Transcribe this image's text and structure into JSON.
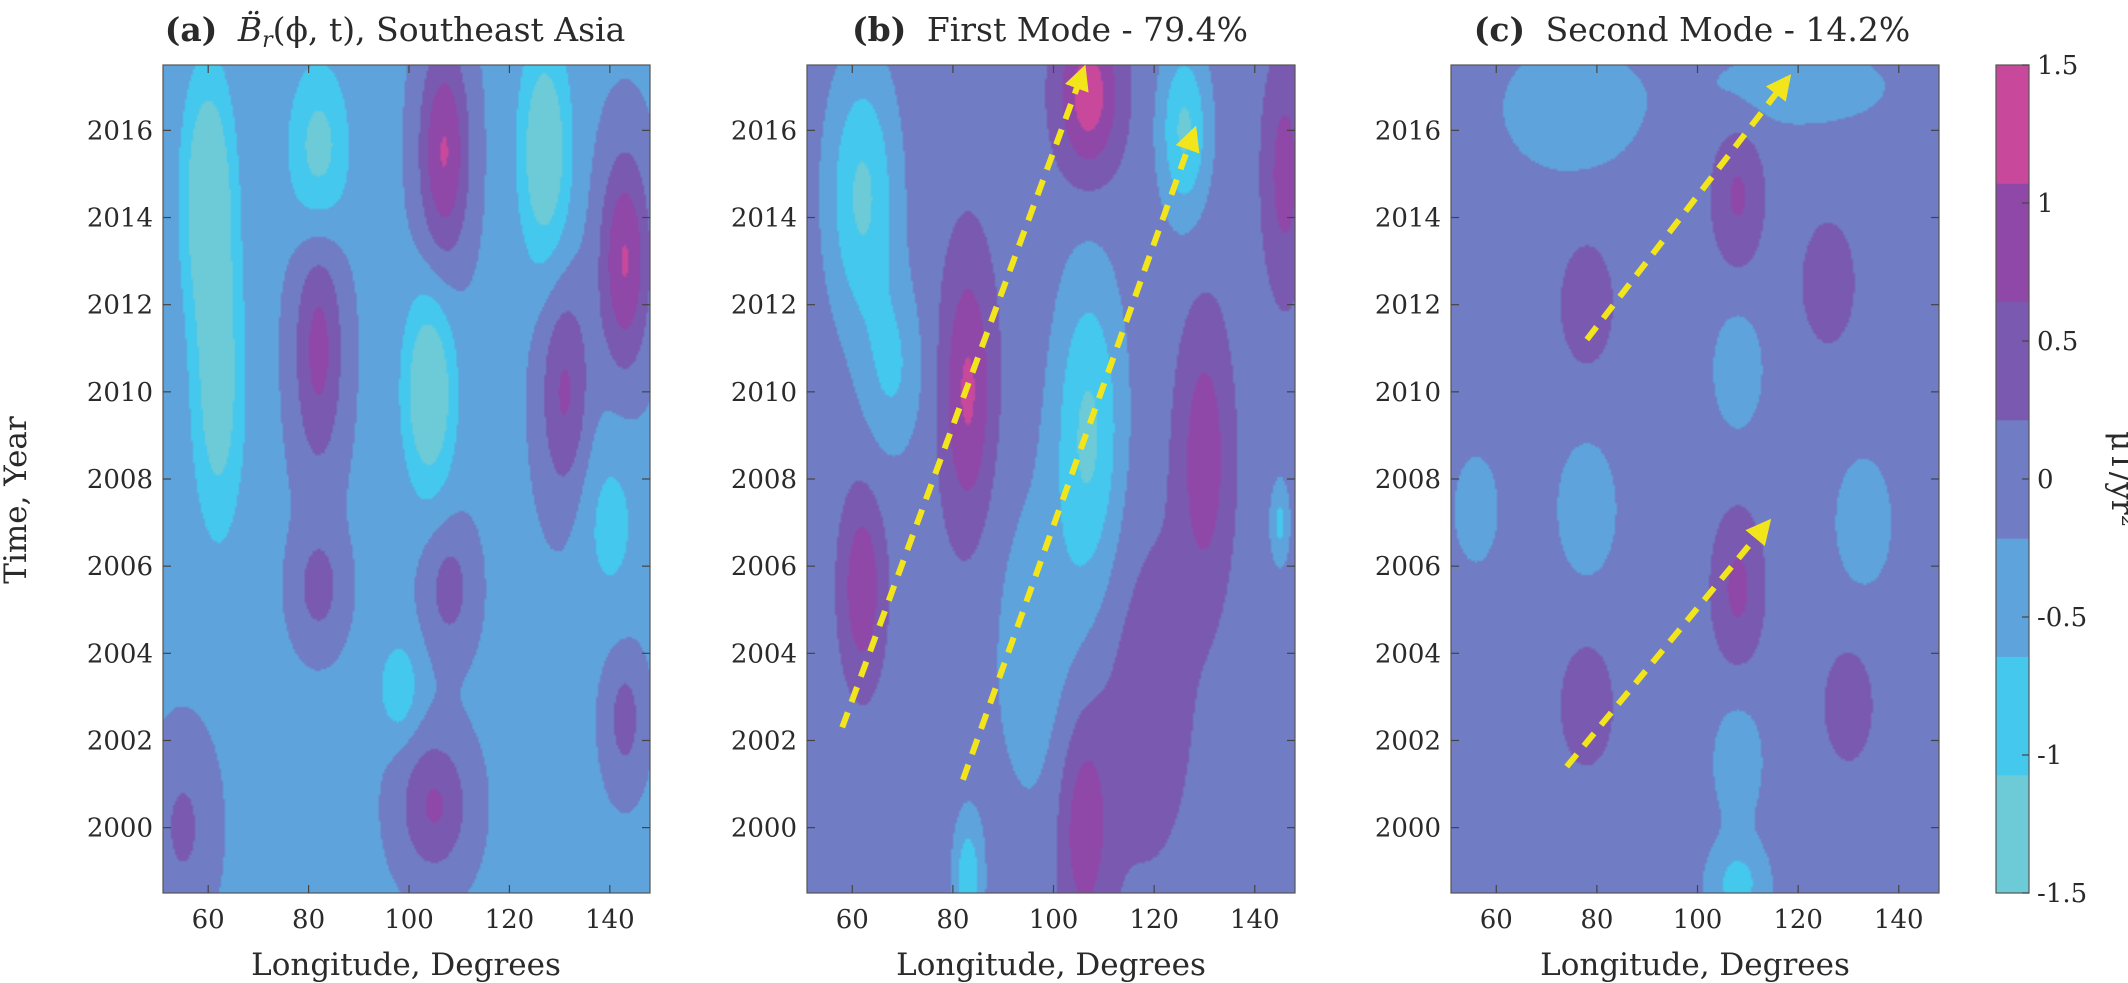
{
  "chart_data": {
    "type": "heatmap",
    "shared": {
      "xlabel": "Longitude, Degrees",
      "ylabel": "Time, Year",
      "xlim": [
        51,
        148
      ],
      "ylim": [
        1998.5,
        2017.5
      ],
      "xticks": [
        "60",
        "80",
        "100",
        "120",
        "140"
      ],
      "yticks": [
        "2000",
        "2002",
        "2004",
        "2006",
        "2008",
        "2010",
        "2012",
        "2014",
        "2016"
      ],
      "colorbar": {
        "label": "μT/yr²",
        "range": [
          -1.5,
          1.5
        ],
        "ticks": [
          "1.5",
          "1",
          "0.5",
          "0",
          "-0.5",
          "-1",
          "-1.5"
        ],
        "colors": [
          "#6ccbd6",
          "#45c8ee",
          "#5ea3dc",
          "#707cc4",
          "#7a5ab0",
          "#9048a8",
          "#c8489c"
        ]
      }
    },
    "panels": [
      {
        "title": "(a) B̈r(ϕ,t), Southeast Asia",
        "title_bold": "(a)",
        "title_rest": "B̈",
        "title_sub": "r",
        "title_tail": "(ϕ, t), Southeast Asia",
        "base_level": -0.3,
        "blobs": [
          {
            "x": 60,
            "y": 2014.5,
            "sx": 5,
            "sy": 2.8,
            "v": -1.4
          },
          {
            "x": 62,
            "y": 2010,
            "sx": 5,
            "sy": 3.2,
            "v": -1.1
          },
          {
            "x": 82,
            "y": 2015.5,
            "sx": 6,
            "sy": 2,
            "v": -1.0
          },
          {
            "x": 82,
            "y": 2011,
            "sx": 5,
            "sy": 2.8,
            "v": 1.1
          },
          {
            "x": 107,
            "y": 2015.5,
            "sx": 5,
            "sy": 2.5,
            "v": 1.4
          },
          {
            "x": 104,
            "y": 2010,
            "sx": 5,
            "sy": 2.2,
            "v": -1.4
          },
          {
            "x": 127,
            "y": 2015.5,
            "sx": 5,
            "sy": 2.5,
            "v": -1.3
          },
          {
            "x": 131,
            "y": 2010,
            "sx": 5,
            "sy": 2.5,
            "v": 1.0
          },
          {
            "x": 143,
            "y": 2013,
            "sx": 5,
            "sy": 2.5,
            "v": 1.4
          },
          {
            "x": 82,
            "y": 2005.5,
            "sx": 5,
            "sy": 1.3,
            "v": 0.7
          },
          {
            "x": 108,
            "y": 2005.5,
            "sx": 5,
            "sy": 1.5,
            "v": 0.7
          },
          {
            "x": 98,
            "y": 2003.2,
            "sx": 4,
            "sy": 1.1,
            "v": -0.7
          },
          {
            "x": 143,
            "y": 2002.5,
            "sx": 4,
            "sy": 1.5,
            "v": 0.7
          },
          {
            "x": 105,
            "y": 2000.5,
            "sx": 7,
            "sy": 1.6,
            "v": 1.0
          },
          {
            "x": 55,
            "y": 2000,
            "sx": 6,
            "sy": 2,
            "v": 0.6
          },
          {
            "x": 140,
            "y": 2007,
            "sx": 6,
            "sy": 2,
            "v": -0.5
          }
        ],
        "arrows": []
      },
      {
        "title": "(b) First Mode - 79.4%",
        "title_bold": "(b)",
        "title_rest": "First Mode - 79.4%",
        "base_level": 0.05,
        "blobs": [
          {
            "x": 62,
            "y": 2014.5,
            "sx": 7,
            "sy": 3,
            "v": -1.2
          },
          {
            "x": 68,
            "y": 2010.5,
            "sx": 6,
            "sy": 2,
            "v": -0.7
          },
          {
            "x": 83,
            "y": 2010,
            "sx": 5,
            "sy": 3,
            "v": 1.1
          },
          {
            "x": 62,
            "y": 2005.5,
            "sx": 4,
            "sy": 2,
            "v": 1.0
          },
          {
            "x": 107,
            "y": 2016.8,
            "sx": 6,
            "sy": 1.8,
            "v": 1.3
          },
          {
            "x": 107,
            "y": 2009,
            "sx": 7,
            "sy": 3.8,
            "v": -1.2
          },
          {
            "x": 126,
            "y": 2016,
            "sx": 5,
            "sy": 2,
            "v": -1.2
          },
          {
            "x": 96,
            "y": 2004,
            "sx": 9,
            "sy": 4,
            "v": -0.5
          },
          {
            "x": 130,
            "y": 2008.5,
            "sx": 5,
            "sy": 3,
            "v": 0.9
          },
          {
            "x": 146,
            "y": 2015,
            "sx": 4,
            "sy": 2.5,
            "v": 0.8
          },
          {
            "x": 106,
            "y": 2000,
            "sx": 5,
            "sy": 2.5,
            "v": 0.9
          },
          {
            "x": 83,
            "y": 1998.8,
            "sx": 3,
            "sy": 1.5,
            "v": -1.0
          },
          {
            "x": 145,
            "y": 2007,
            "sx": 2,
            "sy": 1,
            "v": -0.8
          },
          {
            "x": 118,
            "y": 2003,
            "sx": 10,
            "sy": 4,
            "v": 0.4
          }
        ],
        "arrows": [
          {
            "x1": 58,
            "y1": 2002.3,
            "x2": 106,
            "y2": 2017.4
          },
          {
            "x1": 82,
            "y1": 2001.1,
            "x2": 128,
            "y2": 2016
          }
        ]
      },
      {
        "title": "(c) Second Mode - 14.2%",
        "title_bold": "(c)",
        "title_rest": "Second Mode - 14.2%",
        "base_level": 0.0,
        "blobs": [
          {
            "x": 75,
            "y": 2016.5,
            "sx": 14,
            "sy": 1.5,
            "v": -0.55
          },
          {
            "x": 120,
            "y": 2017,
            "sx": 20,
            "sy": 1,
            "v": -0.45
          },
          {
            "x": 108,
            "y": 2014.5,
            "sx": 5,
            "sy": 1.6,
            "v": 0.7
          },
          {
            "x": 78,
            "y": 2012,
            "sx": 6,
            "sy": 1.6,
            "v": 0.45
          },
          {
            "x": 126,
            "y": 2012.5,
            "sx": 6,
            "sy": 1.6,
            "v": 0.45
          },
          {
            "x": 108,
            "y": 2010.5,
            "sx": 5,
            "sy": 1.4,
            "v": -0.55
          },
          {
            "x": 78,
            "y": 2007.3,
            "sx": 6,
            "sy": 1.6,
            "v": -0.55
          },
          {
            "x": 56,
            "y": 2007.3,
            "sx": 5,
            "sy": 1.4,
            "v": -0.45
          },
          {
            "x": 133,
            "y": 2007,
            "sx": 6,
            "sy": 1.6,
            "v": -0.5
          },
          {
            "x": 108,
            "y": 2005.5,
            "sx": 5,
            "sy": 1.7,
            "v": 0.75
          },
          {
            "x": 78,
            "y": 2002.8,
            "sx": 6,
            "sy": 1.6,
            "v": 0.45
          },
          {
            "x": 130,
            "y": 2002.8,
            "sx": 6,
            "sy": 1.6,
            "v": 0.4
          },
          {
            "x": 108,
            "y": 2001.5,
            "sx": 5,
            "sy": 1.4,
            "v": -0.55
          },
          {
            "x": 108,
            "y": 1998.7,
            "sx": 6,
            "sy": 1,
            "v": -0.8
          }
        ],
        "arrows": [
          {
            "x1": 78,
            "y1": 2011.2,
            "x2": 118,
            "y2": 2017.2
          },
          {
            "x1": 74,
            "y1": 2001.4,
            "x2": 114,
            "y2": 2007.0
          }
        ]
      }
    ]
  }
}
